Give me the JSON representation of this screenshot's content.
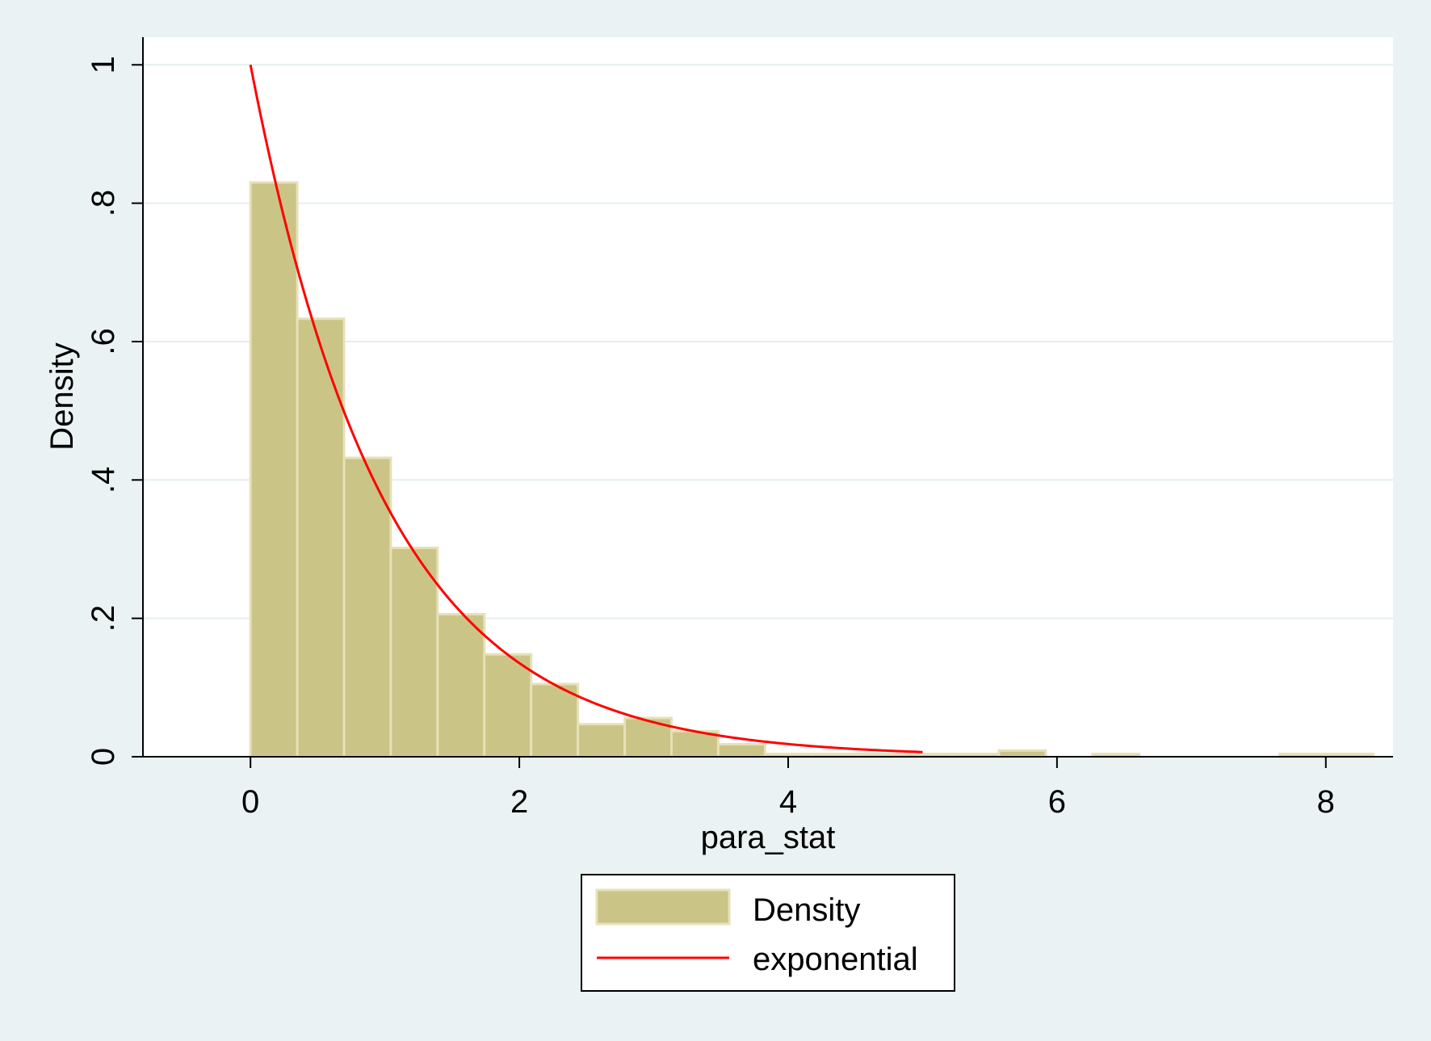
{
  "chart_data": {
    "type": "bar",
    "xlabel": "para_stat",
    "ylabel": "Density",
    "xlim": [
      -0.8,
      8.5
    ],
    "ylim": [
      0,
      1.04
    ],
    "x_ticks": [
      0,
      2,
      4,
      6,
      8
    ],
    "x_tick_labels": [
      "0",
      "2",
      "4",
      "6",
      "8"
    ],
    "y_ticks": [
      0,
      0.2,
      0.4,
      0.6,
      0.8,
      1
    ],
    "y_tick_labels": [
      "0",
      ".2",
      ".4",
      ".6",
      ".8",
      "1"
    ],
    "grid": "horizontal",
    "legend_position": "bottom-center",
    "histogram": {
      "name": "Density",
      "color": "#cbc487",
      "edge_color": "#e6e1b8",
      "bin_width": 0.348,
      "bins": [
        {
          "x0": 0.0,
          "value": 0.83
        },
        {
          "x0": 0.348,
          "value": 0.633
        },
        {
          "x0": 0.696,
          "value": 0.432
        },
        {
          "x0": 1.044,
          "value": 0.302
        },
        {
          "x0": 1.392,
          "value": 0.206
        },
        {
          "x0": 1.74,
          "value": 0.148
        },
        {
          "x0": 2.088,
          "value": 0.105
        },
        {
          "x0": 2.436,
          "value": 0.047
        },
        {
          "x0": 2.784,
          "value": 0.056
        },
        {
          "x0": 3.132,
          "value": 0.037
        },
        {
          "x0": 3.48,
          "value": 0.018
        },
        {
          "x0": 3.828,
          "value": 0.004
        },
        {
          "x0": 4.176,
          "value": 0.004
        },
        {
          "x0": 4.524,
          "value": 0.004
        },
        {
          "x0": 4.872,
          "value": 0.004
        },
        {
          "x0": 5.22,
          "value": 0.004
        },
        {
          "x0": 5.568,
          "value": 0.009
        },
        {
          "x0": 6.264,
          "value": 0.004
        },
        {
          "x0": 7.656,
          "value": 0.004
        },
        {
          "x0": 8.004,
          "value": 0.004
        }
      ]
    },
    "curve": {
      "name": "exponential",
      "color": "#ff0000",
      "function": "exp(-x)",
      "x_range": [
        0,
        5
      ]
    },
    "series": [
      {
        "name": "Density",
        "color": "#cbc487"
      },
      {
        "name": "exponential",
        "color": "#ff0000"
      }
    ]
  }
}
